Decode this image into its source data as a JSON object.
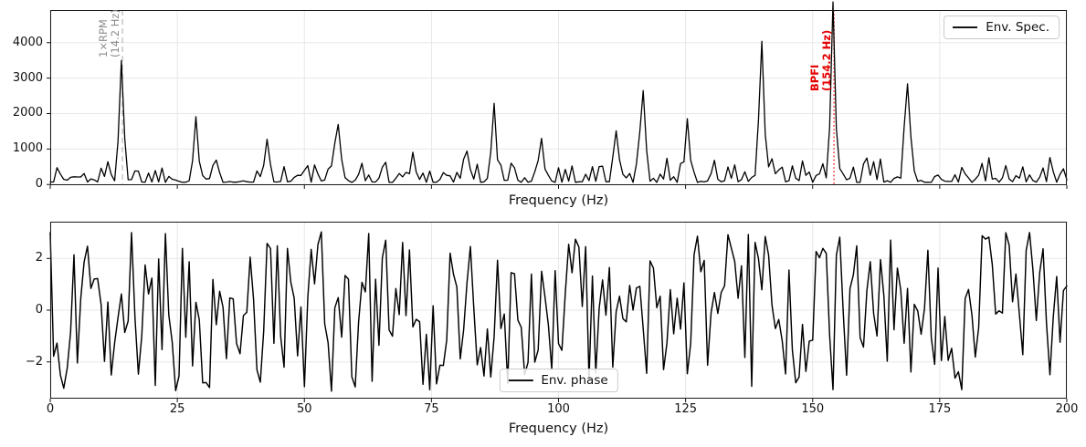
{
  "figure": {
    "background": "#ffffff",
    "line_color": "#000000",
    "grid_color": "#e7e7e7",
    "spine_color": "#1a1a1a",
    "tick_color": "#111111"
  },
  "chart_data": [
    {
      "id": "envelope-spectrum",
      "type": "line",
      "title": "",
      "xlabel": "Frequency (Hz)",
      "ylabel": "",
      "xlim": [
        0,
        200
      ],
      "ylim": [
        -20,
        4920
      ],
      "xticks": [
        0,
        25,
        50,
        75,
        100,
        125,
        150,
        175,
        200
      ],
      "xtick_labels": [],
      "show_xtick_labels": false,
      "yticks": [
        0,
        1000,
        2000,
        3000,
        4000
      ],
      "ytick_labels": [
        "0",
        "1000",
        "2000",
        "3000",
        "4000"
      ],
      "grid": true,
      "line_color": "#000000",
      "legend": {
        "label": "Env. Spec.",
        "position": "upper-right"
      },
      "peaks": [
        {
          "freq": 14.2,
          "amp": 3420
        },
        {
          "freq": 28.4,
          "amp": 1680
        },
        {
          "freq": 42.6,
          "amp": 1020
        },
        {
          "freq": 56.8,
          "amp": 1400
        },
        {
          "freq": 71.0,
          "amp": 560
        },
        {
          "freq": 82.2,
          "amp": 860
        },
        {
          "freq": 87.6,
          "amp": 1700
        },
        {
          "freq": 96.8,
          "amp": 1120
        },
        {
          "freq": 111.3,
          "amp": 1060
        },
        {
          "freq": 116.4,
          "amp": 2580
        },
        {
          "freq": 125.2,
          "amp": 1700
        },
        {
          "freq": 140.0,
          "amp": 3920
        },
        {
          "freq": 154.2,
          "amp": 4480
        },
        {
          "freq": 168.4,
          "amp": 2700
        }
      ],
      "noise": {
        "seed": 1337,
        "n_points": 301,
        "base": 60,
        "amp": 700,
        "power": 2.5,
        "peak_width_hz": 0.45
      },
      "annotations": [
        {
          "lines": [
            "1×RPM",
            "(14.2 Hz)"
          ],
          "freq": 14.2,
          "color": "#8a8a8a",
          "bold": false,
          "line_color": "#aaaaaa",
          "line_style": "dashed",
          "line_width": 1.2
        },
        {
          "lines": [
            "BPFI",
            "(154.2 Hz)"
          ],
          "freq": 154.2,
          "color": "#e60000",
          "bold": true,
          "line_color": "#ff3333",
          "line_style": "dotted",
          "line_width": 1.8
        }
      ]
    },
    {
      "id": "envelope-phase",
      "type": "line",
      "title": "",
      "xlabel": "Frequency (Hz)",
      "ylabel": "",
      "xlim": [
        0,
        200
      ],
      "ylim": [
        -3.42,
        3.42
      ],
      "xticks": [
        0,
        25,
        50,
        75,
        100,
        125,
        150,
        175,
        200
      ],
      "xtick_labels": [
        "0",
        "25",
        "50",
        "75",
        "100",
        "125",
        "150",
        "175",
        "200"
      ],
      "show_xtick_labels": true,
      "yticks": [
        -2,
        0,
        2
      ],
      "ytick_labels": [
        "−2",
        "0",
        "2"
      ],
      "grid": true,
      "line_color": "#000000",
      "legend": {
        "label": "Env. phase",
        "position": "lower-center"
      },
      "phase_range": [
        -3.141593,
        3.141593
      ],
      "noise": {
        "seed": 424243,
        "n_points": 301
      }
    }
  ]
}
